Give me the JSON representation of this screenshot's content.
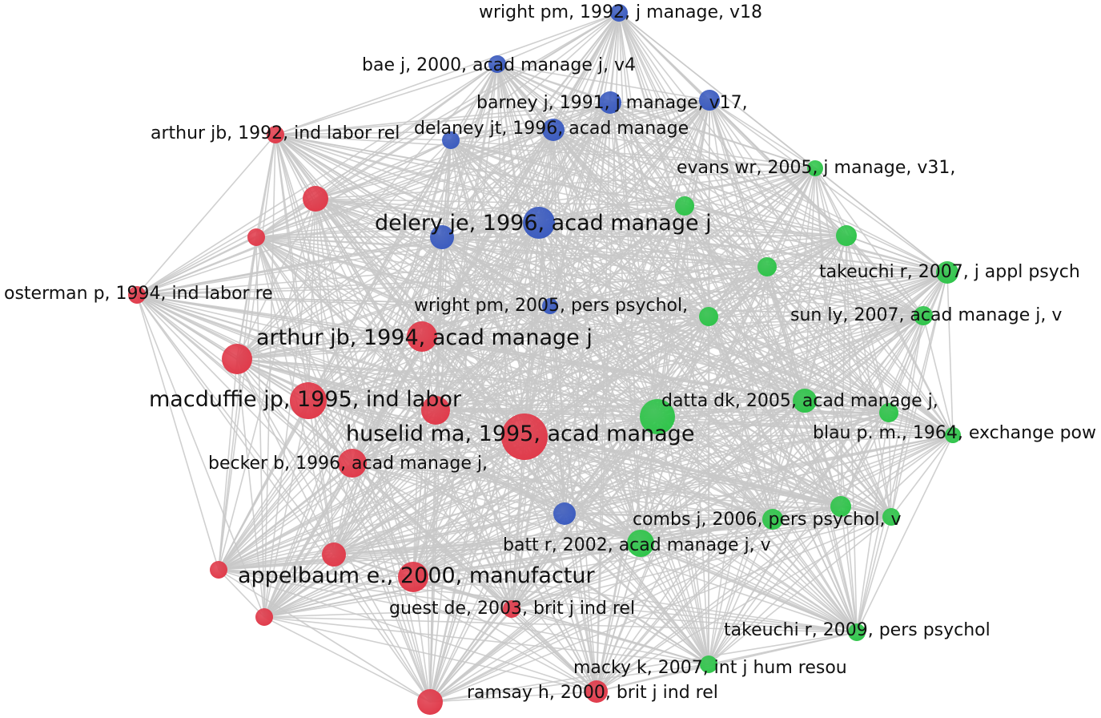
{
  "colors": {
    "cluster_red": "#e03a4a",
    "cluster_blue": "#3b5bbf",
    "cluster_green": "#2fc44a",
    "edge": "#c8c8c8",
    "background": "#ffffff"
  },
  "network": {
    "nodes": [
      {
        "id": "wright1992",
        "label": "wright pm, 1992, j manage, v18",
        "cluster": "blue",
        "weight": 2
      },
      {
        "id": "bae2000",
        "label": "bae j, 2000, acad manage j, v4",
        "cluster": "blue",
        "weight": 2
      },
      {
        "id": "barney1991",
        "label": "barney j, 1991, j manage, v17,",
        "cluster": "blue",
        "weight": 2.5
      },
      {
        "id": "unl_blue_1",
        "label": "",
        "cluster": "blue",
        "weight": 2.5
      },
      {
        "id": "delaney1996",
        "label": "delaney jt, 1996, acad manage",
        "cluster": "blue",
        "weight": 2.5
      },
      {
        "id": "unl_blue_2",
        "label": "",
        "cluster": "blue",
        "weight": 1.8
      },
      {
        "id": "arthur1992",
        "label": "arthur jb, 1992, ind labor rel",
        "cluster": "red",
        "weight": 1.8
      },
      {
        "id": "unl_red_1",
        "label": "",
        "cluster": "red",
        "weight": 3.5
      },
      {
        "id": "unl_red_2",
        "label": "",
        "cluster": "red",
        "weight": 1.8
      },
      {
        "id": "delery1996",
        "label": "delery je, 1996, acad manage j",
        "cluster": "blue",
        "weight": 4.5
      },
      {
        "id": "unl_blue_3",
        "label": "",
        "cluster": "blue",
        "weight": 3
      },
      {
        "id": "evans2005",
        "label": "evans wr, 2005, j manage, v31,",
        "cluster": "green",
        "weight": 1.5
      },
      {
        "id": "unl_green_1",
        "label": "",
        "cluster": "green",
        "weight": 2
      },
      {
        "id": "unl_green_2",
        "label": "",
        "cluster": "green",
        "weight": 2.5
      },
      {
        "id": "unl_green_3",
        "label": "",
        "cluster": "green",
        "weight": 2
      },
      {
        "id": "takeuchi2007",
        "label": "takeuchi r, 2007, j appl psych",
        "cluster": "green",
        "weight": 2.8
      },
      {
        "id": "osterman1994",
        "label": "osterman p, 1994, ind labor re",
        "cluster": "red",
        "weight": 1.8
      },
      {
        "id": "wright2005",
        "label": "wright pm, 2005, pers psychol,",
        "cluster": "blue",
        "weight": 1.5
      },
      {
        "id": "unl_green_4",
        "label": "",
        "cluster": "green",
        "weight": 2
      },
      {
        "id": "sun2007",
        "label": "sun ly, 2007, acad manage j, v",
        "cluster": "green",
        "weight": 2
      },
      {
        "id": "arthur1994",
        "label": "arthur jb, 1994, acad manage j",
        "cluster": "red",
        "weight": 4.2
      },
      {
        "id": "unl_red_3",
        "label": "",
        "cluster": "red",
        "weight": 4.5
      },
      {
        "id": "macduffie1995",
        "label": "macduffie jp, 1995, ind labor",
        "cluster": "red",
        "weight": 5.5
      },
      {
        "id": "unl_red_4",
        "label": "",
        "cluster": "red",
        "weight": 4
      },
      {
        "id": "huselid1995",
        "label": "huselid ma, 1995, acad manage",
        "cluster": "red",
        "weight": 8
      },
      {
        "id": "unl_green_5",
        "label": "",
        "cluster": "green",
        "weight": 5.5
      },
      {
        "id": "datta2005",
        "label": "datta dk, 2005, acad manage j,",
        "cluster": "green",
        "weight": 3
      },
      {
        "id": "unl_green_6",
        "label": "",
        "cluster": "green",
        "weight": 2.2
      },
      {
        "id": "blau1964",
        "label": "blau p. m., 1964, exchange pow",
        "cluster": "green",
        "weight": 1.5
      },
      {
        "id": "becker1996",
        "label": "becker b, 1996, acad manage j,",
        "cluster": "red",
        "weight": 4
      },
      {
        "id": "unl_blue_4",
        "label": "",
        "cluster": "blue",
        "weight": 2.5
      },
      {
        "id": "unl_green_7",
        "label": "",
        "cluster": "green",
        "weight": 2.5
      },
      {
        "id": "combs2006",
        "label": "combs j, 2006, pers psychol, v",
        "cluster": "green",
        "weight": 2.5
      },
      {
        "id": "unl_green_8",
        "label": "",
        "cluster": "green",
        "weight": 1.8
      },
      {
        "id": "batt2002",
        "label": "batt r, 2002, acad manage j, v",
        "cluster": "green",
        "weight": 3.5
      },
      {
        "id": "unl_red_5",
        "label": "",
        "cluster": "red",
        "weight": 3
      },
      {
        "id": "unl_red_6",
        "label": "",
        "cluster": "red",
        "weight": 1.8
      },
      {
        "id": "appelbaum2000",
        "label": "appelbaum e., 2000, manufactur",
        "cluster": "red",
        "weight": 4.5
      },
      {
        "id": "guest2003",
        "label": "guest de, 2003, brit j ind rel",
        "cluster": "red",
        "weight": 1.8
      },
      {
        "id": "unl_red_7",
        "label": "",
        "cluster": "red",
        "weight": 1.8
      },
      {
        "id": "takeuchi2009",
        "label": "takeuchi r, 2009, pers psychol",
        "cluster": "green",
        "weight": 1.8
      },
      {
        "id": "macky2007",
        "label": "macky k, 2007, int j hum resou",
        "cluster": "green",
        "weight": 1.8
      },
      {
        "id": "ramsay2000",
        "label": "ramsay h, 2000, brit j ind rel",
        "cluster": "red",
        "weight": 2.8
      },
      {
        "id": "unl_red_8",
        "label": "",
        "cluster": "red",
        "weight": 3.2
      }
    ]
  }
}
